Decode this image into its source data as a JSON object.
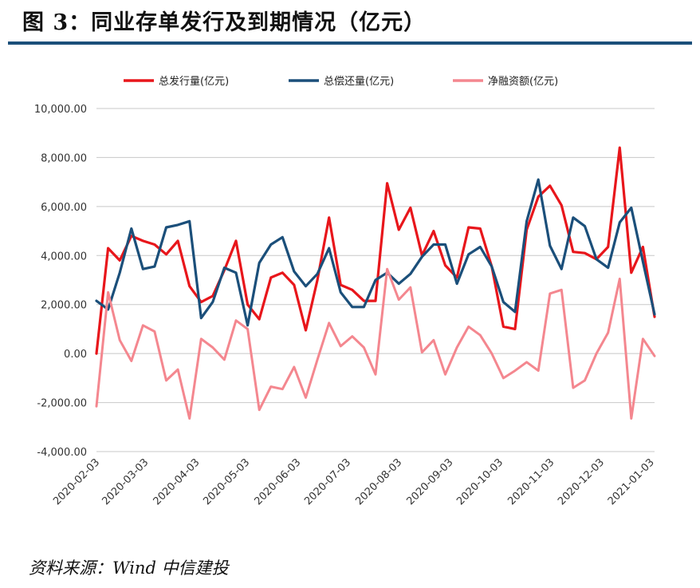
{
  "header": {
    "title": "图 3：同业存单发行及到期情况（亿元）"
  },
  "footer": {
    "source": "资料来源：Wind 中信建投"
  },
  "chart_data": {
    "type": "line",
    "title": "同业存单发行及到期情况（亿元）",
    "ylim": [
      -4000,
      10000
    ],
    "yticks": [
      -4000,
      -2000,
      0,
      2000,
      4000,
      6000,
      8000,
      10000
    ],
    "ytick_labels": [
      "-4,000.00",
      "-2,000.00",
      "0.00",
      "2,000.00",
      "4,000.00",
      "6,000.00",
      "8,000.00",
      "10,000.00"
    ],
    "xtick_labels": [
      "2020-02-03",
      "2020-03-03",
      "2020-04-03",
      "2020-05-03",
      "2020-06-03",
      "2020-07-03",
      "2020-08-03",
      "2020-09-03",
      "2020-10-03",
      "2020-11-03",
      "2020-12-03",
      "2021-01-03"
    ],
    "xtick_positions": [
      0.3,
      4.5,
      8.9,
      13.2,
      17.6,
      21.9,
      26.3,
      30.7,
      35.0,
      39.4,
      43.7,
      48.0
    ],
    "legend_position": "top-center",
    "grid": true,
    "series": [
      {
        "name": "总发行量(亿元)",
        "color": "#e8161b",
        "values": [
          0,
          4300,
          3800,
          4800,
          4600,
          4450,
          4050,
          4600,
          2750,
          2100,
          2350,
          3400,
          4600,
          2000,
          1400,
          3100,
          3300,
          2800,
          950,
          3000,
          5550,
          2800,
          2600,
          2150,
          2150,
          6950,
          5050,
          5950,
          4000,
          5000,
          3600,
          3100,
          5150,
          5100,
          3550,
          1100,
          1000,
          5050,
          6400,
          6850,
          6050,
          4150,
          4100,
          3850,
          4350,
          8400,
          3300,
          4350,
          1500
        ]
      },
      {
        "name": "总偿还量(亿元)",
        "color": "#1b4f7a",
        "values": [
          2150,
          1800,
          3300,
          5100,
          3450,
          3550,
          5150,
          5250,
          5400,
          1450,
          2100,
          3500,
          3300,
          1150,
          3700,
          4450,
          4750,
          3350,
          2750,
          3250,
          4300,
          2500,
          1900,
          1900,
          3000,
          3300,
          2850,
          3250,
          3950,
          4450,
          4450,
          2850,
          4050,
          4350,
          3550,
          2100,
          1700,
          5400,
          7100,
          4400,
          3450,
          5550,
          5200,
          3850,
          3500,
          5350,
          5950,
          3750,
          1600
        ]
      },
      {
        "name": "净融资额(亿元)",
        "color": "#f4878f",
        "values": [
          -2150,
          2500,
          550,
          -300,
          1150,
          900,
          -1100,
          -650,
          -2650,
          600,
          250,
          -250,
          1350,
          1000,
          -2300,
          -1350,
          -1450,
          -550,
          -1800,
          -250,
          1250,
          300,
          700,
          250,
          -850,
          3450,
          2200,
          2700,
          50,
          550,
          -850,
          250,
          1100,
          750,
          0,
          -1000,
          -700,
          -350,
          -700,
          2450,
          2600,
          -1400,
          -1100,
          0,
          850,
          3050,
          -2650,
          600,
          -100
        ]
      }
    ]
  }
}
